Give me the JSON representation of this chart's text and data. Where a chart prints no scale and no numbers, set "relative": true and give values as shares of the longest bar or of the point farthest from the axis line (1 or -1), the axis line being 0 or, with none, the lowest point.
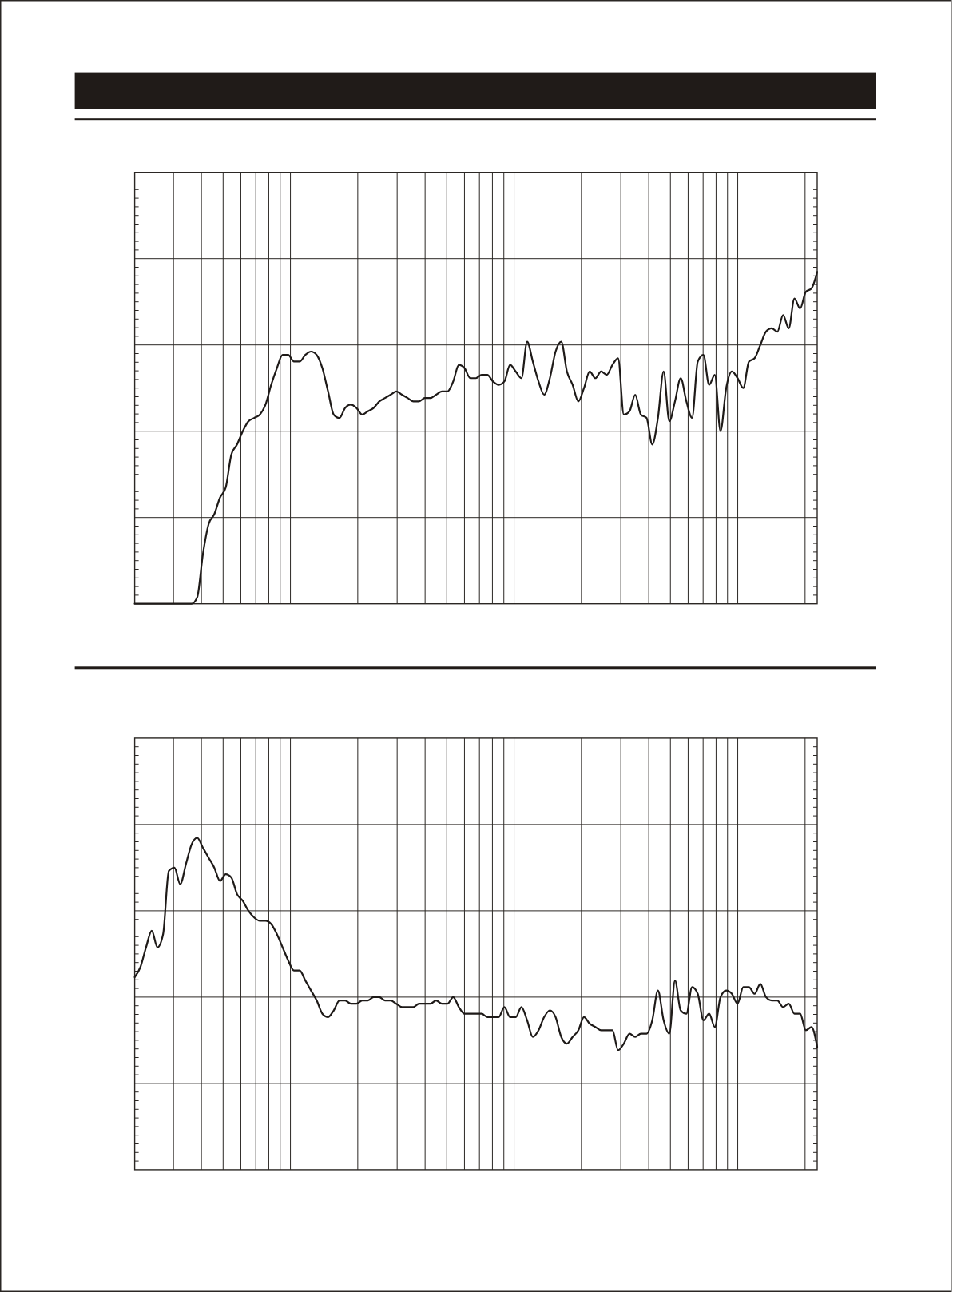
{
  "chart_data": [
    {
      "type": "line",
      "relative": true,
      "grid": true,
      "color": "#1e1a18",
      "categories": [
        null,
        null,
        null,
        null,
        null,
        null,
        null,
        null,
        null,
        null,
        null,
        null,
        null,
        null,
        null,
        null,
        null,
        null,
        null,
        null,
        null,
        null,
        null,
        null,
        null,
        null,
        null,
        null,
        null,
        null,
        null,
        null,
        null,
        null,
        null,
        null,
        null,
        null,
        null,
        null,
        null,
        null,
        null,
        null,
        null,
        null,
        null,
        null,
        null,
        null,
        null,
        null,
        null,
        null,
        null,
        null,
        null,
        null,
        null,
        null,
        null,
        null,
        null,
        null,
        null,
        null,
        null,
        null,
        null,
        null,
        null,
        null,
        null,
        null,
        null,
        null,
        null,
        null,
        null,
        null,
        null,
        null,
        null,
        null,
        null,
        null,
        null,
        null,
        null,
        null,
        null,
        null,
        null,
        null,
        null,
        null,
        null,
        null,
        null,
        null,
        null,
        null,
        null,
        null,
        null,
        null,
        null,
        null,
        null,
        null,
        null,
        null,
        null,
        null,
        null,
        null,
        null,
        null,
        null,
        null,
        null
      ],
      "values": [
        0,
        0,
        0,
        0,
        0,
        0,
        0,
        0,
        0,
        0,
        0,
        0.02,
        0.15,
        0.24,
        0.27,
        0.32,
        0.35,
        0.45,
        0.48,
        0.52,
        0.55,
        0.56,
        0.57,
        0.6,
        0.66,
        0.71,
        0.75,
        0.75,
        0.73,
        0.73,
        0.75,
        0.76,
        0.75,
        0.71,
        0.64,
        0.57,
        0.56,
        0.59,
        0.6,
        0.59,
        0.57,
        0.58,
        0.59,
        0.61,
        0.62,
        0.63,
        0.64,
        0.63,
        0.62,
        0.61,
        0.61,
        0.62,
        0.62,
        0.63,
        0.64,
        0.64,
        0.67,
        0.72,
        0.71,
        0.68,
        0.68,
        0.69,
        0.69,
        0.67,
        0.66,
        0.67,
        0.72,
        0.7,
        0.68,
        0.79,
        0.73,
        0.67,
        0.63,
        0.68,
        0.76,
        0.79,
        0.7,
        0.66,
        0.61,
        0.65,
        0.7,
        0.68,
        0.7,
        0.69,
        0.72,
        0.74,
        0.57,
        0.58,
        0.63,
        0.57,
        0.56,
        0.48,
        0.56,
        0.7,
        0.55,
        0.61,
        0.68,
        0.61,
        0.56,
        0.73,
        0.75,
        0.66,
        0.69,
        0.52,
        0.65,
        0.7,
        0.68,
        0.65,
        0.73,
        0.74,
        0.78,
        0.82,
        0.83,
        0.82,
        0.87,
        0.83,
        0.92,
        0.89,
        0.94,
        0.95,
        1
      ]
    },
    {
      "type": "line",
      "relative": true,
      "grid": true,
      "color": "#1e1a18",
      "categories": [
        null,
        null,
        null,
        null,
        null,
        null,
        null,
        null,
        null,
        null,
        null,
        null,
        null,
        null,
        null,
        null,
        null,
        null,
        null,
        null,
        null,
        null,
        null,
        null,
        null,
        null,
        null,
        null,
        null,
        null,
        null,
        null,
        null,
        null,
        null,
        null,
        null,
        null,
        null,
        null,
        null,
        null,
        null,
        null,
        null,
        null,
        null,
        null,
        null,
        null,
        null,
        null,
        null,
        null,
        null,
        null,
        null,
        null,
        null,
        null,
        null,
        null,
        null,
        null,
        null,
        null,
        null,
        null,
        null,
        null,
        null,
        null,
        null,
        null,
        null,
        null,
        null,
        null,
        null,
        null,
        null,
        null,
        null,
        null,
        null,
        null,
        null,
        null,
        null,
        null,
        null,
        null,
        null,
        null,
        null,
        null,
        null,
        null,
        null,
        null,
        null,
        null,
        null,
        null,
        null,
        null,
        null,
        null,
        null,
        null,
        null,
        null,
        null,
        null,
        null,
        null,
        null,
        null,
        null,
        null,
        null
      ],
      "values": [
        0.58,
        0.61,
        0.67,
        0.72,
        0.67,
        0.71,
        0.9,
        0.91,
        0.86,
        0.92,
        0.98,
        1,
        0.97,
        0.94,
        0.91,
        0.87,
        0.89,
        0.88,
        0.83,
        0.81,
        0.78,
        0.76,
        0.75,
        0.75,
        0.74,
        0.71,
        0.67,
        0.63,
        0.6,
        0.6,
        0.57,
        0.54,
        0.51,
        0.47,
        0.46,
        0.48,
        0.51,
        0.51,
        0.5,
        0.5,
        0.51,
        0.51,
        0.52,
        0.52,
        0.51,
        0.51,
        0.5,
        0.49,
        0.49,
        0.49,
        0.5,
        0.5,
        0.5,
        0.51,
        0.5,
        0.5,
        0.52,
        0.49,
        0.47,
        0.47,
        0.47,
        0.47,
        0.46,
        0.46,
        0.46,
        0.49,
        0.46,
        0.46,
        0.49,
        0.45,
        0.4,
        0.42,
        0.46,
        0.48,
        0.46,
        0.4,
        0.38,
        0.4,
        0.42,
        0.46,
        0.44,
        0.43,
        0.42,
        0.42,
        0.42,
        0.36,
        0.38,
        0.41,
        0.4,
        0.41,
        0.41,
        0.45,
        0.54,
        0.45,
        0.41,
        0.57,
        0.48,
        0.47,
        0.55,
        0.53,
        0.45,
        0.47,
        0.43,
        0.52,
        0.54,
        0.53,
        0.5,
        0.55,
        0.55,
        0.53,
        0.56,
        0.52,
        0.51,
        0.51,
        0.49,
        0.5,
        0.47,
        0.47,
        0.42,
        0.43,
        0.37
      ]
    }
  ]
}
